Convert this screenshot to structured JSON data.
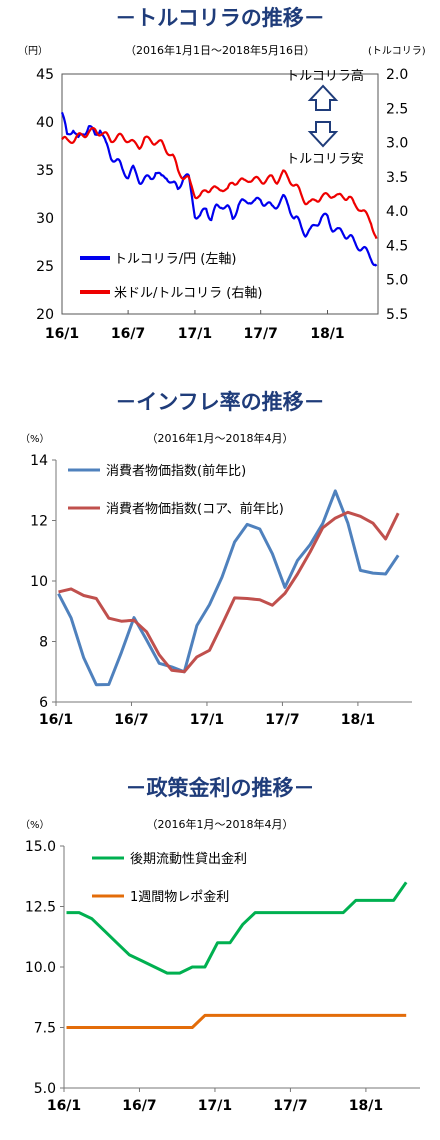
{
  "chart_data": [
    {
      "type": "line",
      "title": "－トルコリラの推移－",
      "subtitle": "（2016年1月1日～2018年5月16日）",
      "ylabel_left": "（円）",
      "ylabel_right": "(トルコリラ)",
      "ylim": [
        20,
        45
      ],
      "y_ticks": [
        "20",
        "25",
        "30",
        "35",
        "40",
        "45"
      ],
      "y2lim": [
        2.0,
        5.5
      ],
      "y2_inverted": true,
      "y2_ticks": [
        "2.0",
        "2.5",
        "3.0",
        "3.5",
        "4.0",
        "4.5",
        "5.0",
        "5.5"
      ],
      "x_ticks": [
        "16/1",
        "16/7",
        "17/1",
        "17/7",
        "18/1"
      ],
      "annotation_up": "トルコリラ高",
      "annotation_down": "トルコリラ安",
      "series": [
        {
          "name": "トルコリラ/円 (左軸)",
          "axis": "left",
          "color": "#0000ee",
          "x": [
            "2016-01-01",
            "2016-01-15",
            "2016-02-01",
            "2016-02-15",
            "2016-03-01",
            "2016-03-15",
            "2016-04-01",
            "2016-04-15",
            "2016-05-01",
            "2016-05-15",
            "2016-06-01",
            "2016-06-15",
            "2016-07-01",
            "2016-07-15",
            "2016-08-01",
            "2016-08-15",
            "2016-09-01",
            "2016-09-15",
            "2016-10-01",
            "2016-10-15",
            "2016-11-01",
            "2016-11-15",
            "2016-12-01",
            "2016-12-15",
            "2017-01-01",
            "2017-01-15",
            "2017-02-01",
            "2017-02-15",
            "2017-03-01",
            "2017-03-15",
            "2017-04-01",
            "2017-04-15",
            "2017-05-01",
            "2017-05-15",
            "2017-06-01",
            "2017-06-15",
            "2017-07-01",
            "2017-07-15",
            "2017-08-01",
            "2017-08-15",
            "2017-09-01",
            "2017-09-15",
            "2017-10-01",
            "2017-10-15",
            "2017-11-01",
            "2017-11-15",
            "2017-12-01",
            "2017-12-15",
            "2018-01-01",
            "2018-01-15",
            "2018-02-01",
            "2018-02-15",
            "2018-03-01",
            "2018-03-15",
            "2018-04-01",
            "2018-04-15",
            "2018-05-01",
            "2018-05-16"
          ],
          "values": [
            41.0,
            38.5,
            39.5,
            38.0,
            39.0,
            39.5,
            38.5,
            39.5,
            37.5,
            36.5,
            36.0,
            35.0,
            34.5,
            35.0,
            34.0,
            34.0,
            34.0,
            35.0,
            34.0,
            34.5,
            33.5,
            33.0,
            34.5,
            34.0,
            30.5,
            30.0,
            31.0,
            30.0,
            31.0,
            31.5,
            31.0,
            30.0,
            31.5,
            31.5,
            32.0,
            31.5,
            32.0,
            31.5,
            31.0,
            31.5,
            32.0,
            31.5,
            30.0,
            29.5,
            28.5,
            28.5,
            29.5,
            30.0,
            30.0,
            29.0,
            28.5,
            28.5,
            28.0,
            27.5,
            27.0,
            26.5,
            26.0,
            25.0
          ]
        },
        {
          "name": "米ドル/トルコリラ (右軸)",
          "axis": "right",
          "color": "#ee0000",
          "x": [
            "2016-01-01",
            "2016-01-15",
            "2016-02-01",
            "2016-02-15",
            "2016-03-01",
            "2016-03-15",
            "2016-04-01",
            "2016-04-15",
            "2016-05-01",
            "2016-05-15",
            "2016-06-01",
            "2016-06-15",
            "2016-07-01",
            "2016-07-15",
            "2016-08-01",
            "2016-08-15",
            "2016-09-01",
            "2016-09-15",
            "2016-10-01",
            "2016-10-15",
            "2016-11-01",
            "2016-11-15",
            "2016-12-01",
            "2016-12-15",
            "2017-01-01",
            "2017-01-15",
            "2017-02-01",
            "2017-02-15",
            "2017-03-01",
            "2017-03-15",
            "2017-04-01",
            "2017-04-15",
            "2017-05-01",
            "2017-05-15",
            "2017-06-01",
            "2017-06-15",
            "2017-07-01",
            "2017-07-15",
            "2017-08-01",
            "2017-08-15",
            "2017-09-01",
            "2017-09-15",
            "2017-10-01",
            "2017-10-15",
            "2017-11-01",
            "2017-11-15",
            "2017-12-01",
            "2017-12-15",
            "2018-01-01",
            "2018-01-15",
            "2018-02-01",
            "2018-02-15",
            "2018-03-01",
            "2018-03-15",
            "2018-04-01",
            "2018-04-15",
            "2018-05-01",
            "2018-05-16"
          ],
          "values": [
            2.95,
            2.98,
            2.95,
            2.92,
            2.88,
            2.85,
            2.83,
            2.85,
            2.9,
            2.95,
            2.92,
            2.92,
            2.95,
            3.02,
            3.05,
            2.95,
            2.98,
            2.98,
            3.02,
            3.1,
            3.2,
            3.4,
            3.5,
            3.55,
            3.75,
            3.8,
            3.7,
            3.65,
            3.7,
            3.65,
            3.7,
            3.58,
            3.55,
            3.58,
            3.52,
            3.55,
            3.55,
            3.55,
            3.52,
            3.55,
            3.45,
            3.5,
            3.62,
            3.7,
            3.85,
            3.9,
            3.82,
            3.8,
            3.78,
            3.75,
            3.8,
            3.78,
            3.8,
            3.9,
            3.95,
            4.05,
            4.15,
            4.4
          ]
        }
      ]
    },
    {
      "type": "line",
      "title": "－インフレ率の推移－",
      "subtitle": "（2016年1月～2018年4月）",
      "ylabel": "（%）",
      "ylim": [
        6,
        14
      ],
      "y_ticks": [
        "6",
        "8",
        "10",
        "12",
        "14"
      ],
      "x_ticks": [
        "16/1",
        "16/7",
        "17/1",
        "17/7",
        "18/1"
      ],
      "x": [
        "2016-01",
        "2016-02",
        "2016-03",
        "2016-04",
        "2016-05",
        "2016-06",
        "2016-07",
        "2016-08",
        "2016-09",
        "2016-10",
        "2016-11",
        "2016-12",
        "2017-01",
        "2017-02",
        "2017-03",
        "2017-04",
        "2017-05",
        "2017-06",
        "2017-07",
        "2017-08",
        "2017-09",
        "2017-10",
        "2017-11",
        "2017-12",
        "2018-01",
        "2018-02",
        "2018-03",
        "2018-04"
      ],
      "series": [
        {
          "name": "消費者物価指数(前年比)",
          "color": "#4f81bd",
          "values": [
            9.58,
            8.78,
            7.46,
            6.57,
            6.58,
            7.64,
            8.79,
            8.05,
            7.28,
            7.16,
            7.0,
            8.53,
            9.22,
            10.13,
            11.29,
            11.87,
            11.72,
            10.9,
            9.79,
            10.68,
            11.2,
            11.9,
            12.98,
            11.92,
            10.35,
            10.26,
            10.23,
            10.85
          ]
        },
        {
          "name": "消費者物価指数(コア、前年比)",
          "color": "#c0504d",
          "values": [
            9.64,
            9.74,
            9.52,
            9.42,
            8.77,
            8.67,
            8.7,
            8.32,
            7.56,
            7.05,
            7.0,
            7.49,
            7.71,
            8.56,
            9.44,
            9.42,
            9.38,
            9.2,
            9.59,
            10.23,
            10.96,
            11.76,
            12.08,
            12.27,
            12.14,
            11.91,
            11.39,
            12.24
          ]
        }
      ]
    },
    {
      "type": "line",
      "title": "－政策金利の推移－",
      "subtitle": "（2016年1月～2018年4月）",
      "ylabel": "（%）",
      "ylim": [
        5.0,
        15.0
      ],
      "y_ticks": [
        "5.0",
        "7.5",
        "10.0",
        "12.5",
        "15.0"
      ],
      "x_ticks": [
        "16/1",
        "16/7",
        "17/1",
        "17/7",
        "18/1"
      ],
      "x": [
        "2016-01",
        "2016-02",
        "2016-03",
        "2016-04",
        "2016-05",
        "2016-06",
        "2016-07",
        "2016-08",
        "2016-09",
        "2016-10",
        "2016-11",
        "2016-12",
        "2017-01",
        "2017-02",
        "2017-03",
        "2017-04",
        "2017-05",
        "2017-06",
        "2017-07",
        "2017-08",
        "2017-09",
        "2017-10",
        "2017-11",
        "2017-12",
        "2018-01",
        "2018-02",
        "2018-03",
        "2018-04"
      ],
      "series": [
        {
          "name": "後期流動性貸出金利",
          "color": "#00b050",
          "values": [
            12.25,
            12.25,
            12.0,
            11.5,
            11.0,
            10.5,
            10.25,
            10.0,
            9.75,
            9.75,
            10.0,
            10.0,
            11.0,
            11.0,
            11.75,
            12.25,
            12.25,
            12.25,
            12.25,
            12.25,
            12.25,
            12.25,
            12.25,
            12.75,
            12.75,
            12.75,
            12.75,
            13.5
          ]
        },
        {
          "name": "1週間物レポ金利",
          "color": "#e36c09",
          "values": [
            7.5,
            7.5,
            7.5,
            7.5,
            7.5,
            7.5,
            7.5,
            7.5,
            7.5,
            7.5,
            7.5,
            8.0,
            8.0,
            8.0,
            8.0,
            8.0,
            8.0,
            8.0,
            8.0,
            8.0,
            8.0,
            8.0,
            8.0,
            8.0,
            8.0,
            8.0,
            8.0,
            8.0
          ]
        }
      ]
    }
  ]
}
